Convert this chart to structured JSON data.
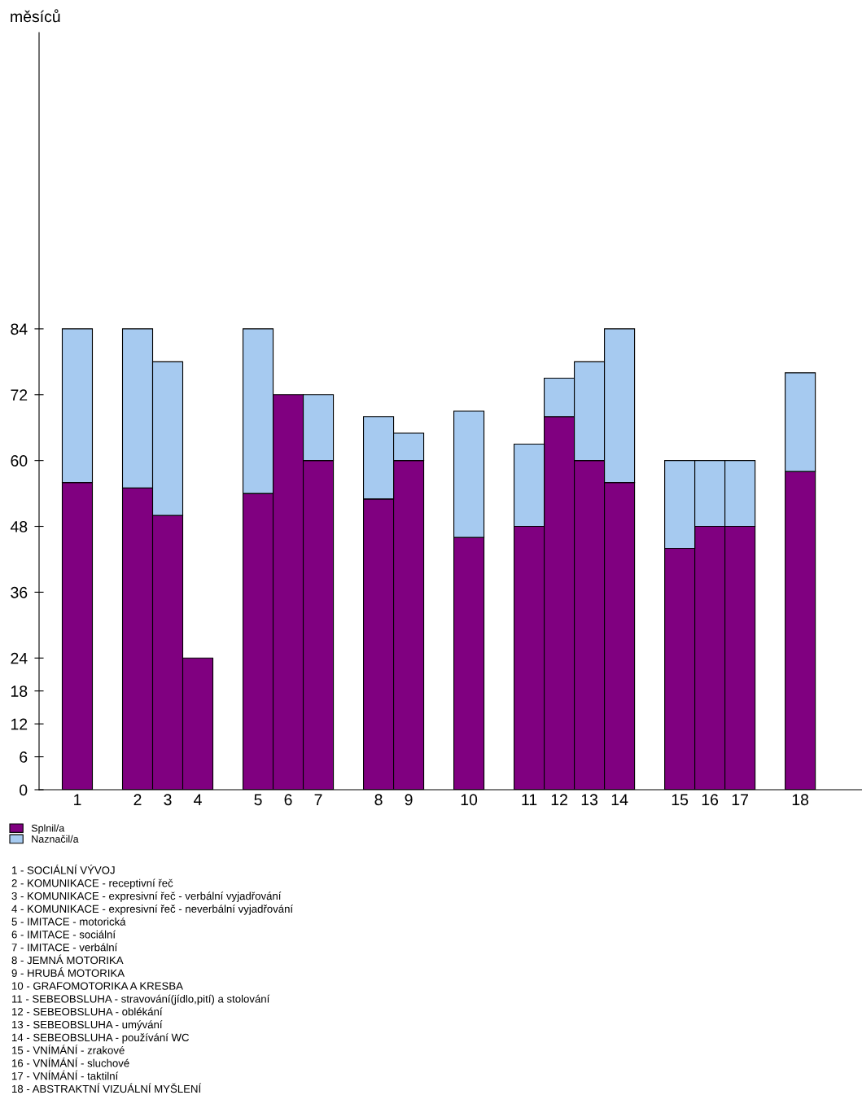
{
  "chart_data": {
    "type": "bar",
    "stacked": true,
    "ylabel": "měsíců",
    "categories": [
      "1",
      null,
      "2",
      "3",
      "4",
      null,
      "5",
      "6",
      "7",
      null,
      "8",
      "9",
      null,
      "10",
      null,
      "11",
      "12",
      "13",
      "14",
      null,
      "15",
      "16",
      "17",
      null,
      "18"
    ],
    "series": [
      {
        "name": "Splnil/a",
        "color": "#800080",
        "values": [
          56,
          null,
          55,
          50,
          24,
          null,
          54,
          72,
          60,
          null,
          53,
          60,
          null,
          46,
          null,
          48,
          68,
          60,
          56,
          null,
          44,
          48,
          48,
          null,
          58
        ]
      },
      {
        "name": "Naznačil/a",
        "color": "#a6caf0",
        "values": [
          28,
          null,
          29,
          28,
          null,
          null,
          30,
          null,
          12,
          null,
          15,
          5,
          null,
          23,
          null,
          15,
          7,
          18,
          28,
          null,
          16,
          12,
          12,
          null,
          18
        ]
      }
    ],
    "ylim": [
      0,
      138
    ],
    "yticks": [
      0,
      6,
      12,
      18,
      24,
      36,
      48,
      60,
      72,
      84
    ],
    "grid": false,
    "legend": "bottom left",
    "annotations": [
      "1 - SOCIÁLNÍ VÝVOJ",
      "2 - KOMUNIKACE - receptivní řeč",
      "3 - KOMUNIKACE - expresivní řeč - verbální vyjadřování",
      "4 - KOMUNIKACE - expresivní řeč - neverbální vyjadřování",
      "5 - IMITACE - motorická",
      "6 - IMITACE - sociální",
      "7 - IMITACE - verbální",
      "8 - JEMNÁ MOTORIKA",
      "9 - HRUBÁ MOTORIKA",
      "10 - GRAFOMOTORIKA A KRESBA",
      "11 - SEBEOBSLUHA - stravování(jídlo,pití) a stolování",
      "12 - SEBEOBSLUHA - oblékání",
      "13 - SEBEOBSLUHA - umývání",
      "14 - SEBEOBSLUHA - používání WC",
      "15 - VNÍMÁNÍ - zrakové",
      "16 - VNÍMÁNÍ - sluchové",
      "17 - VNÍMÁNÍ - taktilní",
      "18 - ABSTRAKTNÍ VIZUÁLNÍ MYŠLENÍ"
    ]
  }
}
